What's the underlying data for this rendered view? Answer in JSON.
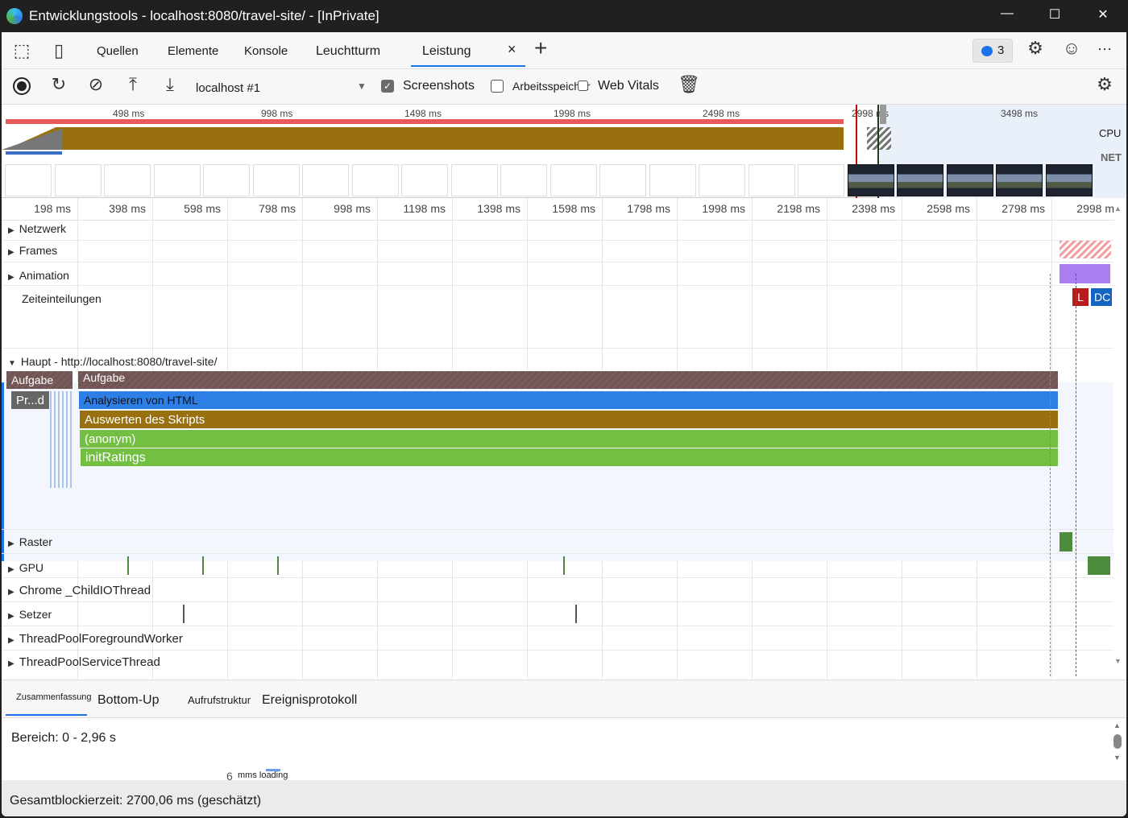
{
  "window": {
    "title": "Entwicklungstools - localhost:8080/travel-site/ - [InPrivate]",
    "minimize": "—",
    "maximize": "☐",
    "close": "✕"
  },
  "tabs": {
    "items": [
      "Quellen",
      "Elemente",
      "Konsole",
      "Leuchtturm",
      "Leistung"
    ],
    "active": "Leistung",
    "close": "×",
    "add": "+",
    "issues_count": "3",
    "more": "···"
  },
  "toolbar": {
    "profile_select": "localhost #1",
    "screenshots_label": "Screenshots",
    "screenshots_checked": true,
    "memory_label": "Arbeitsspeicher",
    "memory_checked": false,
    "webvitals_label": "Web Vitals",
    "webvitals_checked": false
  },
  "overview": {
    "ticks": [
      "498 ms",
      "998 ms",
      "1498 ms",
      "1998 ms",
      "2498 ms",
      "2998 ms",
      "3498 ms"
    ],
    "cpu_label": "CPU",
    "net_label": "NET"
  },
  "ruler": {
    "ticks": [
      "198 ms",
      "398 ms",
      "598 ms",
      "798 ms",
      "998 ms",
      "1198 ms",
      "1398 ms",
      "1598 ms",
      "1798 ms",
      "1998 ms",
      "2198 ms",
      "2398 ms",
      "2598 ms",
      "2798 ms",
      "2998 ms"
    ]
  },
  "tracks": {
    "network": "Netzwerk",
    "frames": "Frames",
    "animation": "Animation",
    "timings": "Zeiteinteilungen",
    "main": "Haupt - http://localhost:8080/travel-site/",
    "raster": "Raster",
    "gpu": "GPU",
    "io": "Chrome _ChildIOThread",
    "compositor": "Setzer",
    "tpfw": "ThreadPoolForegroundWorker",
    "tpst": "ThreadPoolServiceThread"
  },
  "timing_markers": {
    "l": "L",
    "dcl": "DC"
  },
  "flame": {
    "task1": "Aufgabe",
    "task2": "Aufgabe",
    "pr": "Pr...d",
    "parse": "Analysieren von HTML",
    "eval": "Auswerten des Skripts",
    "anon": "(anonym)",
    "init": "initRatings"
  },
  "colors": {
    "task": "#7a5a5a",
    "parse": "#2d7fe6",
    "eval": "#98700f",
    "js": "#72bf44",
    "cpu_script": "#98700f",
    "limit": "#c00"
  },
  "bottom": {
    "tabs": [
      "Zusammenfassung",
      "Bottom-Up",
      "Aufrufstruktur",
      "Ereignisprotokoll"
    ],
    "active": "Zusammenfassung",
    "range": "Bereich: 0 - 2,96 s",
    "loading_num": "6",
    "loading_text": "mms loading",
    "total_blocking": "Gesamtblockierzeit: 2700,06 ms (geschätzt)"
  }
}
